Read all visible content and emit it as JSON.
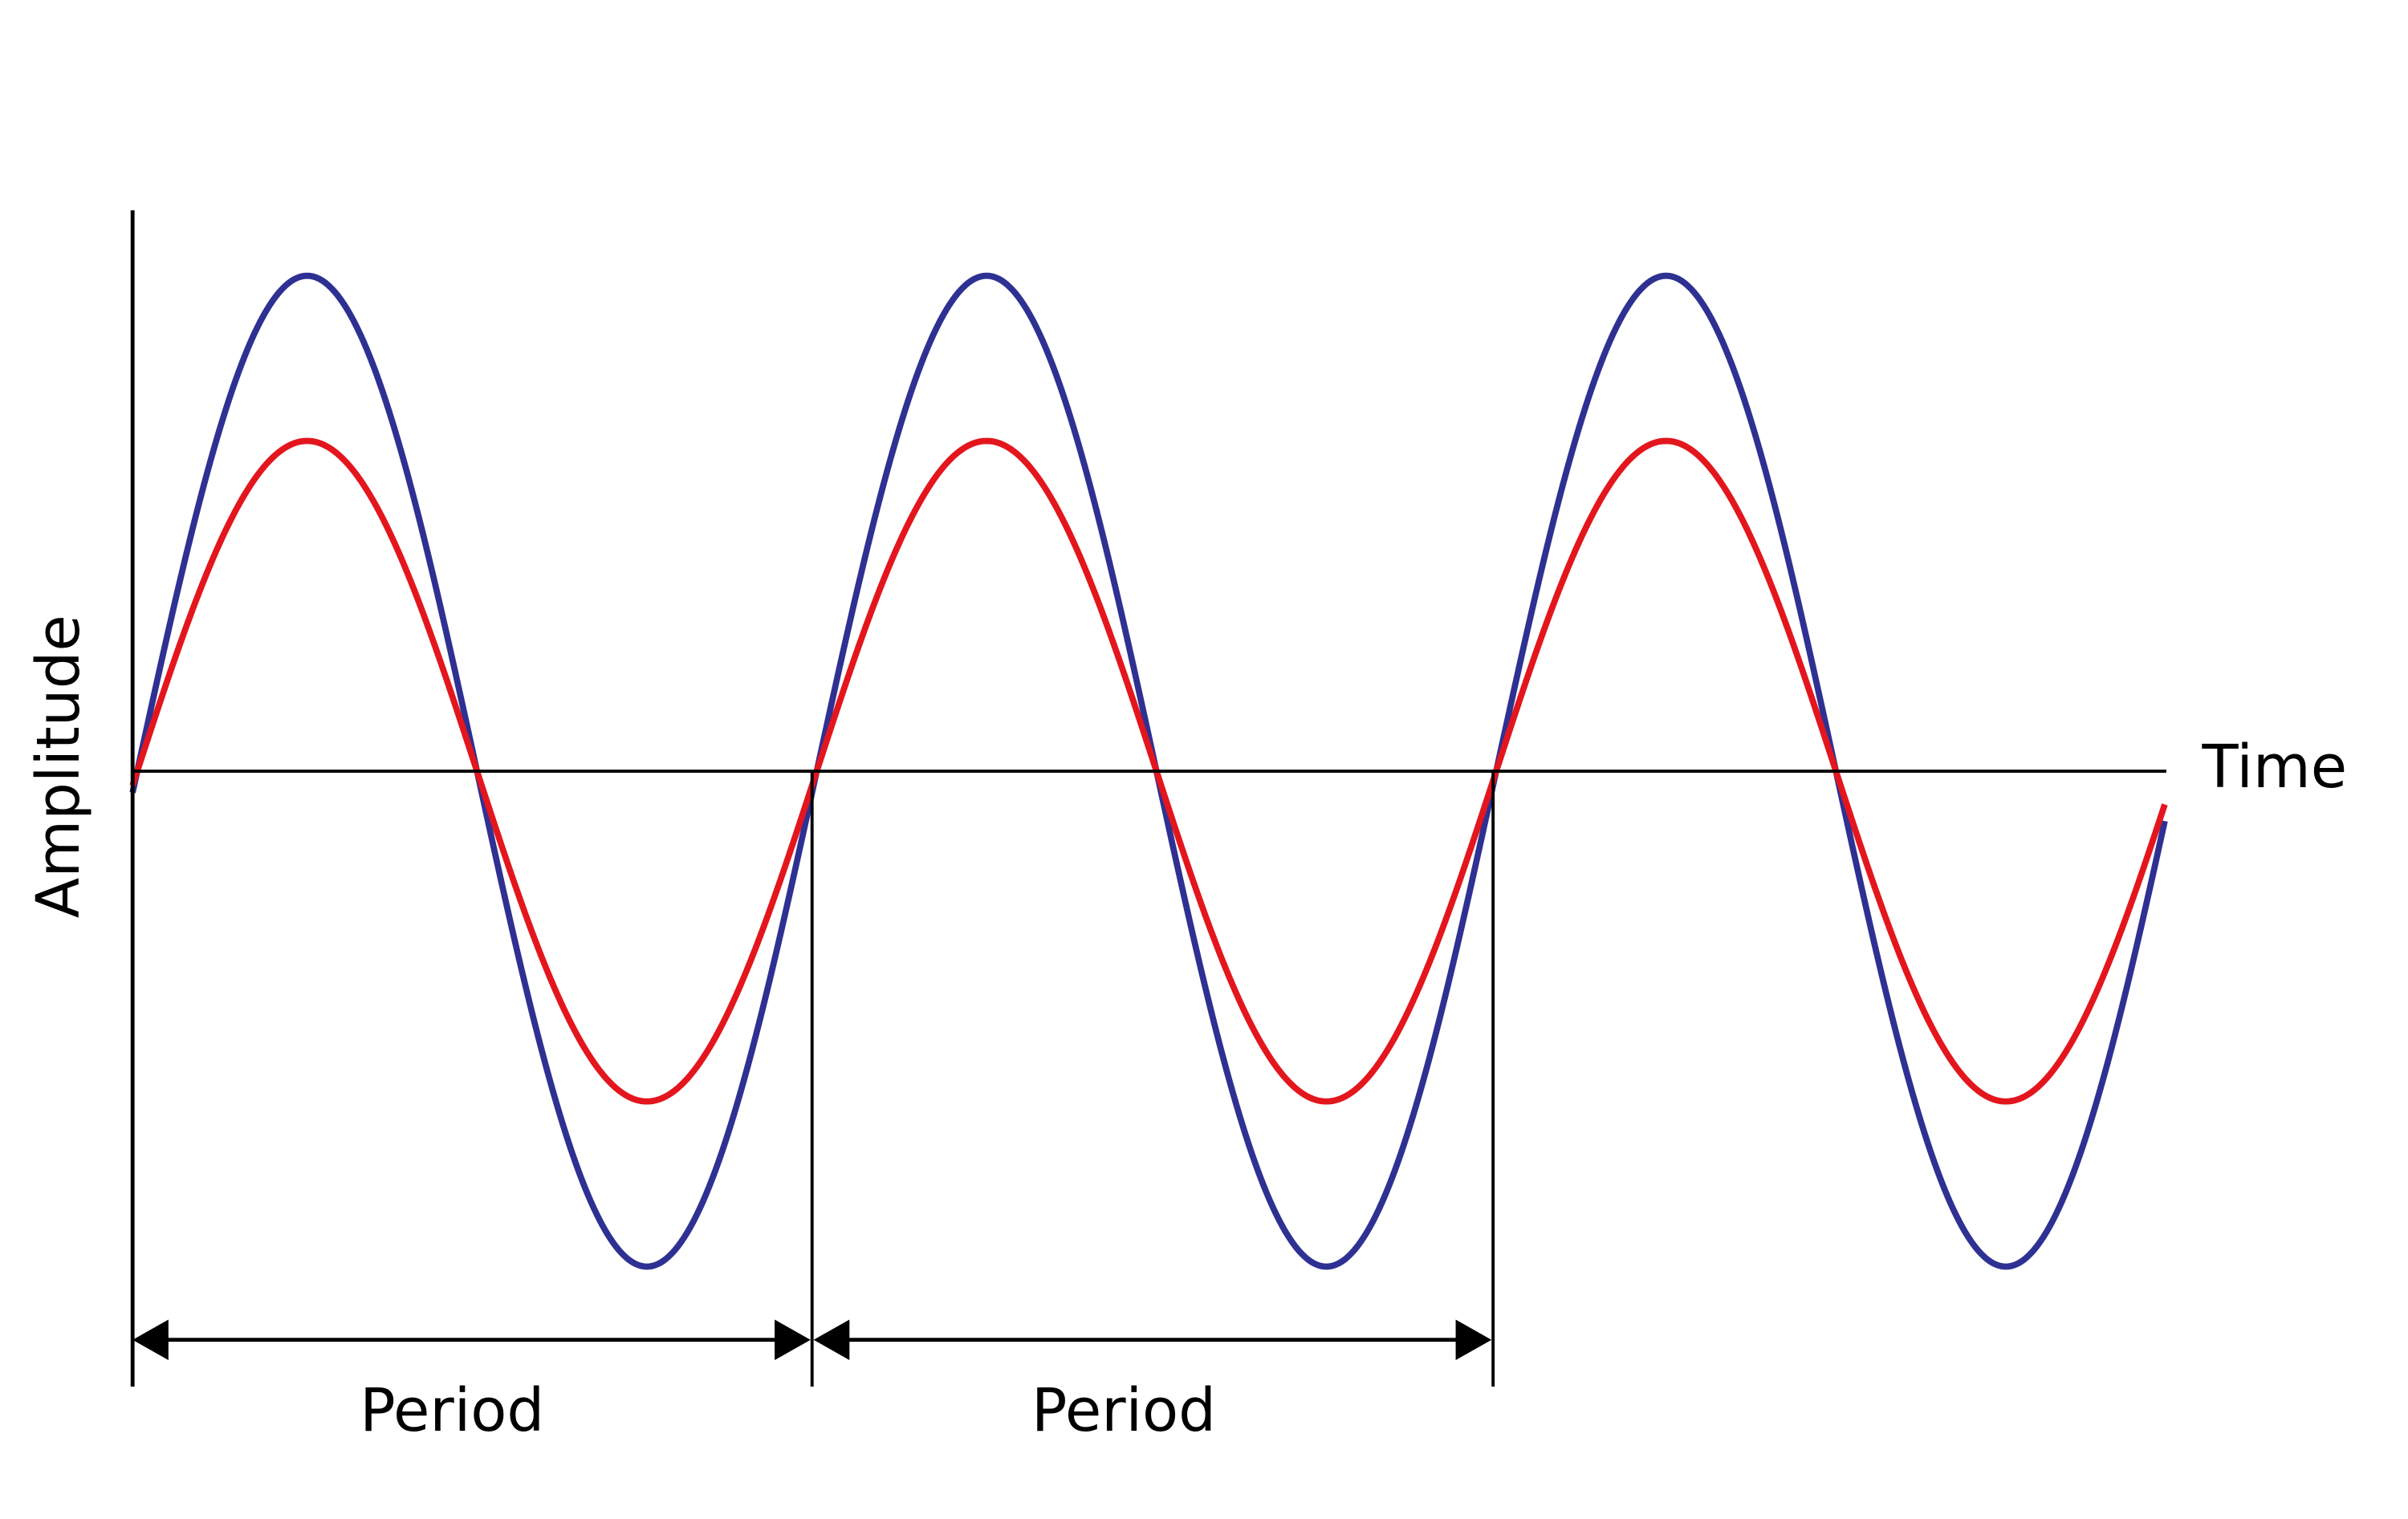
{
  "axes": {
    "y_label": "Amplitude",
    "x_label": "Time"
  },
  "periods": [
    {
      "label": "Period"
    },
    {
      "label": "Period"
    }
  ]
}
